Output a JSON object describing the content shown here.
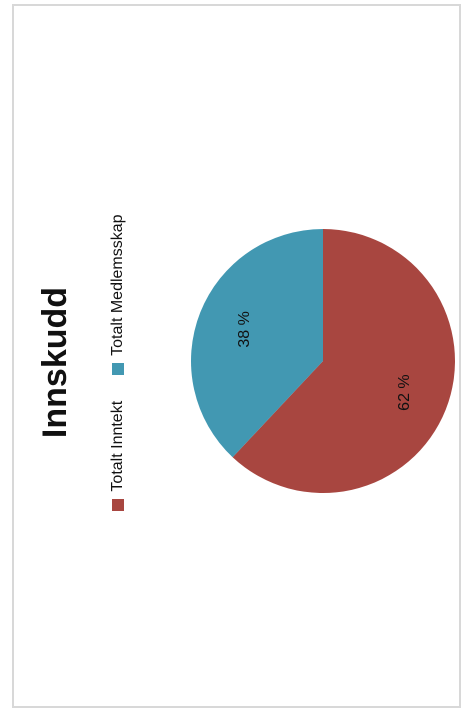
{
  "chart_data": {
    "type": "pie",
    "title": "Innskudd",
    "legend_position": "top",
    "slices": [
      {
        "label": "Totalt Inntekt",
        "value": 62,
        "display": "62 %",
        "color": "#a84640"
      },
      {
        "label": "Totalt Medlemsskap",
        "value": 38,
        "display": "38 %",
        "color": "#4298b2"
      }
    ]
  }
}
